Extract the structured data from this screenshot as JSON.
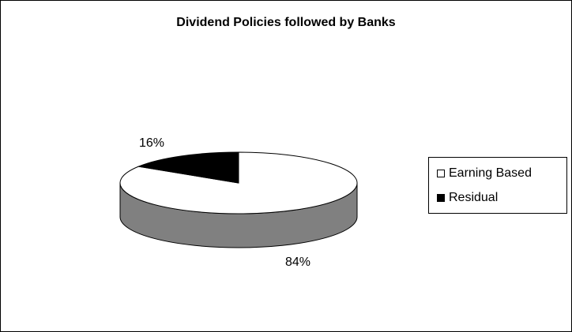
{
  "chart_data": {
    "type": "pie",
    "title": "Dividend Policies followed by Banks",
    "categories": [
      "Earning Based",
      "Residual"
    ],
    "values": [
      84,
      16
    ],
    "labels": [
      "84%",
      "16%"
    ],
    "legend_position": "right",
    "three_d": true
  },
  "colors": {
    "earning_based": "#ffffff",
    "residual": "#000000",
    "side": "#808080"
  }
}
